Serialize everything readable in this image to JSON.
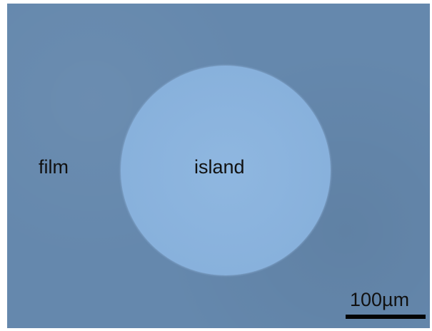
{
  "image": {
    "labels": {
      "film": "film",
      "island": "island"
    },
    "scale_bar": {
      "label": "100µm"
    },
    "colors": {
      "film": "#6588ad",
      "island": "#8ab3de",
      "text": "#111111",
      "scale_bar": "#050505"
    }
  }
}
